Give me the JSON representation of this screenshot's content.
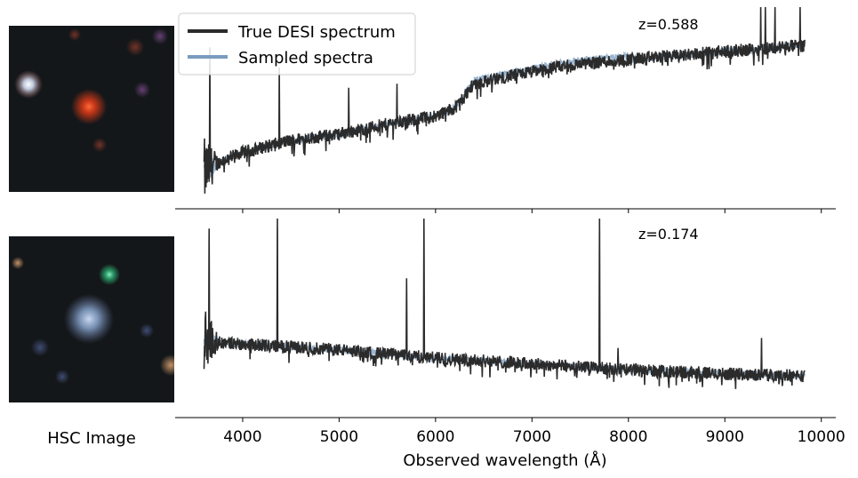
{
  "hsc_label": "HSC Image",
  "colors": {
    "true_spectrum": "#2b2b2b",
    "sampled_spectra": "#7a9cbf",
    "thumb_background": "#14171a"
  },
  "chart_data": {
    "type": "line",
    "xlabel": "Observed wavelength (Å)",
    "xlim": [
      3300,
      10150
    ],
    "xticks": [
      4000,
      5000,
      6000,
      7000,
      8000,
      9000,
      10000
    ],
    "xtick_labels": [
      "4000",
      "5000",
      "6000",
      "7000",
      "8000",
      "9000",
      "10000"
    ],
    "legend": {
      "position": "top-left",
      "entries": [
        {
          "label": "True DESI spectrum",
          "color": "#2b2b2b"
        },
        {
          "label": "Sampled spectra",
          "color": "#7a9cbf"
        }
      ]
    },
    "panels": [
      {
        "name": "top",
        "redshift_label": "z=0.588",
        "ylim": [
          0,
          100
        ],
        "wavelength_range": [
          3600,
          9830
        ],
        "continuum": [
          [
            3600,
            18
          ],
          [
            3700,
            22
          ],
          [
            4000,
            28
          ],
          [
            4500,
            34
          ],
          [
            5000,
            37
          ],
          [
            5500,
            42
          ],
          [
            6000,
            46
          ],
          [
            6200,
            50
          ],
          [
            6300,
            56
          ],
          [
            6400,
            62
          ],
          [
            7000,
            68
          ],
          [
            7500,
            72
          ],
          [
            8000,
            74
          ],
          [
            9000,
            78
          ],
          [
            9830,
            81
          ]
        ],
        "emission_lines": [
          [
            3660,
            80
          ],
          [
            4380,
            70
          ],
          [
            5100,
            60
          ],
          [
            5600,
            62
          ],
          [
            7950,
            70
          ],
          [
            9370,
            100
          ],
          [
            9420,
            100
          ],
          [
            9520,
            100
          ],
          [
            9780,
            100
          ]
        ]
      },
      {
        "name": "bottom",
        "redshift_label": "z=0.174",
        "ylim": [
          0,
          100
        ],
        "wavelength_range": [
          3600,
          9830
        ],
        "continuum": [
          [
            3600,
            40
          ],
          [
            3700,
            38
          ],
          [
            4000,
            37
          ],
          [
            5000,
            34
          ],
          [
            6000,
            30
          ],
          [
            7000,
            27
          ],
          [
            8000,
            24
          ],
          [
            9000,
            22
          ],
          [
            9830,
            21
          ]
        ],
        "emission_lines": [
          [
            3650,
            95
          ],
          [
            4360,
            100
          ],
          [
            5700,
            70
          ],
          [
            5880,
            100
          ],
          [
            7700,
            100
          ],
          [
            7890,
            35
          ],
          [
            9380,
            40
          ]
        ]
      }
    ]
  },
  "thumbnails": [
    {
      "name": "top",
      "sources": [
        {
          "color": "#ff5a2a",
          "brightness": 1.0
        },
        {
          "color": "#e8f0ff",
          "brightness": 0.9
        },
        {
          "color": "#a05a7a",
          "brightness": 0.5
        }
      ]
    },
    {
      "name": "bottom",
      "sources": [
        {
          "color": "#c8d8f0",
          "brightness": 1.0
        },
        {
          "color": "#3ad08a",
          "brightness": 0.8
        },
        {
          "color": "#c08a60",
          "brightness": 0.5
        }
      ]
    }
  ]
}
